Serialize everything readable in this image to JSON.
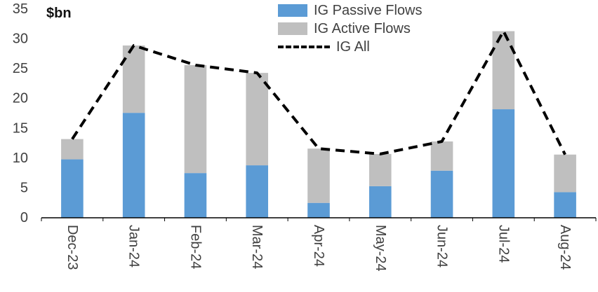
{
  "chart_data": {
    "type": "bar",
    "stacked": true,
    "title": "",
    "ylabel": "$bn",
    "xlabel": "",
    "grid": false,
    "legend_position": "top-center",
    "ylim": [
      0,
      35
    ],
    "ytick_step": 5,
    "categories": [
      "Dec-23",
      "Jan-24",
      "Feb-24",
      "Mar-24",
      "Apr-24",
      "May-24",
      "Jun-24",
      "Jul-24",
      "Aug-24"
    ],
    "series": [
      {
        "name": "IG Passive Flows",
        "color": "#5B9BD5",
        "values": [
          9.8,
          17.6,
          7.5,
          8.8,
          2.5,
          5.3,
          7.9,
          18.2,
          4.3
        ]
      },
      {
        "name": "IG Active Flows",
        "color": "#BFBFBF",
        "values": [
          3.4,
          11.3,
          18.1,
          15.5,
          9.1,
          5.4,
          4.9,
          13.1,
          6.3
        ]
      }
    ],
    "line_series": {
      "name": "IG All",
      "color": "#000000",
      "style": "dashed",
      "values": [
        13.2,
        28.9,
        25.6,
        24.3,
        11.6,
        10.7,
        12.8,
        31.3,
        10.6
      ]
    }
  }
}
